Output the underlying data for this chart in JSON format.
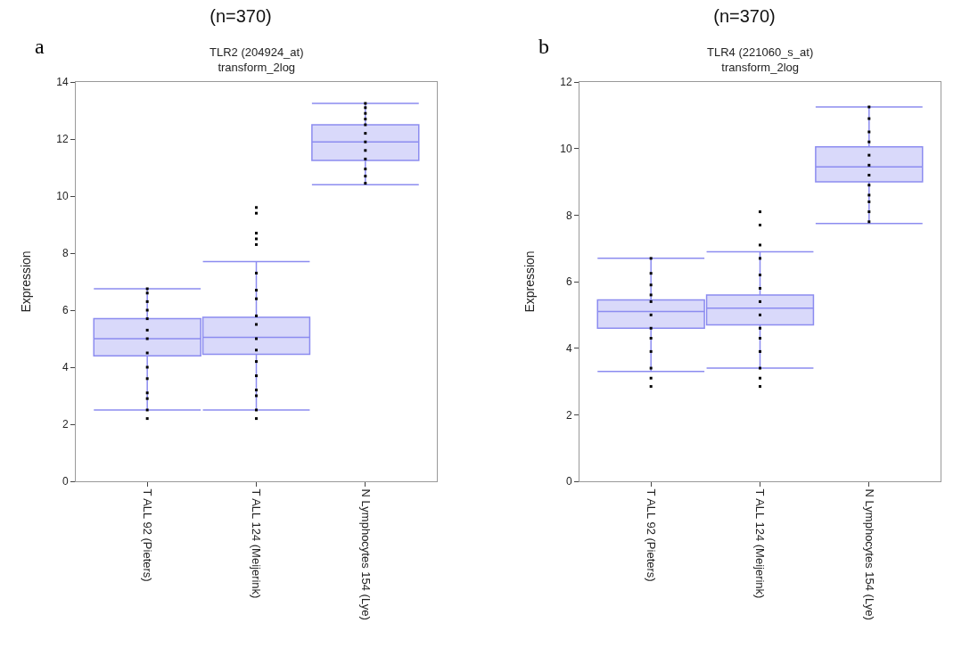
{
  "chart_data": [
    {
      "type": "box",
      "title": "(n=370)",
      "subtitle": "TLR2 (204924_at)\ntransform_2log",
      "ylabel": "Expression",
      "annotations": [
        "a"
      ],
      "categories": [
        "T ALL 92 (Pieters)",
        "T ALL 124 (Meijerink)",
        "N Lymphocytes 154 (Lye)"
      ],
      "color": "#8c8cf0",
      "ylim": [
        0,
        14
      ],
      "yticks": [
        0,
        2,
        4,
        6,
        8,
        10,
        12,
        14
      ],
      "grid": false,
      "boxes": [
        {
          "low": 2.5,
          "q1": 4.4,
          "median": 5.0,
          "q3": 5.7,
          "high": 6.75
        },
        {
          "low": 2.5,
          "q1": 4.45,
          "median": 5.05,
          "q3": 5.75,
          "high": 7.7
        },
        {
          "low": 10.4,
          "q1": 11.25,
          "median": 11.9,
          "q3": 12.5,
          "high": 13.25
        }
      ],
      "series": [
        {
          "type": "scatter",
          "color": "#000000",
          "marker": "square",
          "x": [
            "T ALL 92 (Pieters)",
            "T ALL 92 (Pieters)",
            "T ALL 92 (Pieters)",
            "T ALL 92 (Pieters)",
            "T ALL 92 (Pieters)",
            "T ALL 92 (Pieters)",
            "T ALL 92 (Pieters)",
            "T ALL 92 (Pieters)",
            "T ALL 92 (Pieters)",
            "T ALL 92 (Pieters)",
            "T ALL 92 (Pieters)",
            "T ALL 92 (Pieters)",
            "T ALL 92 (Pieters)",
            "T ALL 92 (Pieters)",
            "T ALL 124 (Meijerink)",
            "T ALL 124 (Meijerink)",
            "T ALL 124 (Meijerink)",
            "T ALL 124 (Meijerink)",
            "T ALL 124 (Meijerink)",
            "T ALL 124 (Meijerink)",
            "T ALL 124 (Meijerink)",
            "T ALL 124 (Meijerink)",
            "T ALL 124 (Meijerink)",
            "T ALL 124 (Meijerink)",
            "T ALL 124 (Meijerink)",
            "T ALL 124 (Meijerink)",
            "T ALL 124 (Meijerink)",
            "T ALL 124 (Meijerink)",
            "T ALL 124 (Meijerink)",
            "T ALL 124 (Meijerink)",
            "T ALL 124 (Meijerink)",
            "T ALL 124 (Meijerink)",
            "N Lymphocytes 154 (Lye)",
            "N Lymphocytes 154 (Lye)",
            "N Lymphocytes 154 (Lye)",
            "N Lymphocytes 154 (Lye)",
            "N Lymphocytes 154 (Lye)",
            "N Lymphocytes 154 (Lye)",
            "N Lymphocytes 154 (Lye)",
            "N Lymphocytes 154 (Lye)",
            "N Lymphocytes 154 (Lye)",
            "N Lymphocytes 154 (Lye)",
            "N Lymphocytes 154 (Lye)",
            "N Lymphocytes 154 (Lye)"
          ],
          "values": [
            2.2,
            2.5,
            2.9,
            3.1,
            3.6,
            4.0,
            4.5,
            5.0,
            5.3,
            5.7,
            6.0,
            6.3,
            6.6,
            6.75,
            2.2,
            2.5,
            3.0,
            3.2,
            3.7,
            4.2,
            4.6,
            5.0,
            5.5,
            5.8,
            6.4,
            6.7,
            7.3,
            8.3,
            8.5,
            8.7,
            9.4,
            9.6,
            10.45,
            10.7,
            10.95,
            11.3,
            11.6,
            11.9,
            12.2,
            12.5,
            12.7,
            12.9,
            13.1,
            13.25
          ]
        }
      ]
    },
    {
      "type": "box",
      "title": "(n=370)",
      "subtitle": "TLR4 (221060_s_at)\ntransform_2log",
      "ylabel": "Expression",
      "annotations": [
        "b"
      ],
      "categories": [
        "T ALL 92 (Pieters)",
        "T ALL 124 (Meijerink)",
        "N Lymphocytes 154 (Lye)"
      ],
      "color": "#8c8cf0",
      "ylim": [
        0,
        12
      ],
      "yticks": [
        0,
        2,
        4,
        6,
        8,
        10,
        12
      ],
      "grid": false,
      "boxes": [
        {
          "low": 3.3,
          "q1": 4.6,
          "median": 5.1,
          "q3": 5.45,
          "high": 6.7
        },
        {
          "low": 3.4,
          "q1": 4.7,
          "median": 5.2,
          "q3": 5.6,
          "high": 6.9
        },
        {
          "low": 7.75,
          "q1": 9.0,
          "median": 9.45,
          "q3": 10.05,
          "high": 11.25
        }
      ],
      "series": [
        {
          "type": "scatter",
          "color": "#000000",
          "marker": "square",
          "x": [
            "T ALL 92 (Pieters)",
            "T ALL 92 (Pieters)",
            "T ALL 92 (Pieters)",
            "T ALL 92 (Pieters)",
            "T ALL 92 (Pieters)",
            "T ALL 92 (Pieters)",
            "T ALL 92 (Pieters)",
            "T ALL 92 (Pieters)",
            "T ALL 92 (Pieters)",
            "T ALL 92 (Pieters)",
            "T ALL 92 (Pieters)",
            "T ALL 92 (Pieters)",
            "T ALL 124 (Meijerink)",
            "T ALL 124 (Meijerink)",
            "T ALL 124 (Meijerink)",
            "T ALL 124 (Meijerink)",
            "T ALL 124 (Meijerink)",
            "T ALL 124 (Meijerink)",
            "T ALL 124 (Meijerink)",
            "T ALL 124 (Meijerink)",
            "T ALL 124 (Meijerink)",
            "T ALL 124 (Meijerink)",
            "T ALL 124 (Meijerink)",
            "T ALL 124 (Meijerink)",
            "T ALL 124 (Meijerink)",
            "T ALL 124 (Meijerink)",
            "N Lymphocytes 154 (Lye)",
            "N Lymphocytes 154 (Lye)",
            "N Lymphocytes 154 (Lye)",
            "N Lymphocytes 154 (Lye)",
            "N Lymphocytes 154 (Lye)",
            "N Lymphocytes 154 (Lye)",
            "N Lymphocytes 154 (Lye)",
            "N Lymphocytes 154 (Lye)",
            "N Lymphocytes 154 (Lye)",
            "N Lymphocytes 154 (Lye)",
            "N Lymphocytes 154 (Lye)",
            "N Lymphocytes 154 (Lye)"
          ],
          "values": [
            2.85,
            3.1,
            3.4,
            3.9,
            4.3,
            4.6,
            5.0,
            5.4,
            5.6,
            5.9,
            6.25,
            6.7,
            2.85,
            3.1,
            3.4,
            3.9,
            4.3,
            4.6,
            5.0,
            5.4,
            5.8,
            6.2,
            6.7,
            7.1,
            7.7,
            8.1,
            7.8,
            8.1,
            8.4,
            8.6,
            8.9,
            9.2,
            9.5,
            9.8,
            10.2,
            10.5,
            10.9,
            11.25
          ]
        }
      ]
    }
  ]
}
